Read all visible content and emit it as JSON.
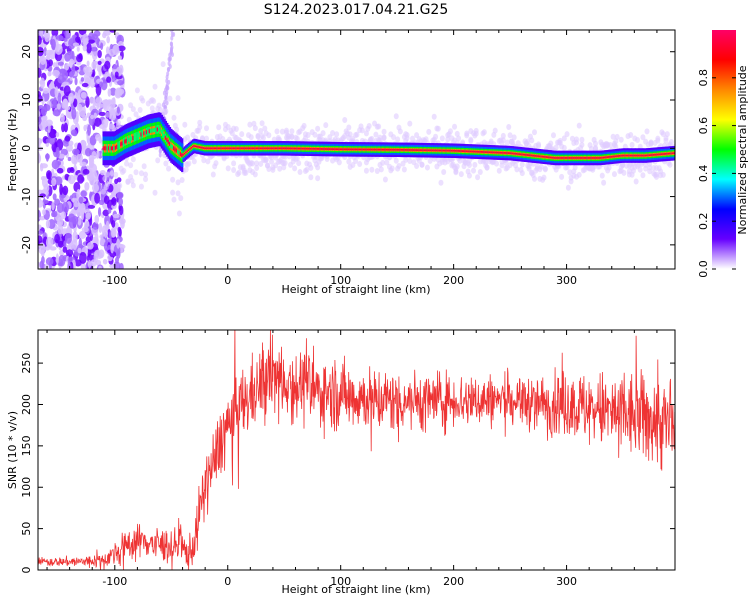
{
  "figure": {
    "title": "S124.2023.017.04.21.G25"
  },
  "chart_data": [
    {
      "type": "heatmap",
      "title": "",
      "xlabel": "Height of straight line (km)",
      "ylabel": "Frequency (Hz)",
      "xlim": [
        -168,
        396
      ],
      "ylim": [
        -25,
        24.5
      ],
      "xticks": [
        -100,
        0,
        100,
        200,
        300
      ],
      "yticks": [
        -20,
        -10,
        0,
        10,
        20
      ],
      "grid": false,
      "colorbar": {
        "label": "Normalized spectral amplitude",
        "range": [
          0,
          1
        ],
        "ticks": [
          0.0,
          0.2,
          0.4,
          0.6,
          0.8
        ],
        "colors": [
          "#ffffff",
          "#6600ff",
          "#0000ff",
          "#00ffff",
          "#00ff00",
          "#ffff00",
          "#ff8800",
          "#ff0000",
          "#ff0066"
        ]
      },
      "ridge": {
        "x": [
          -100,
          -90,
          -80,
          -70,
          -60,
          -50,
          -40,
          -30,
          -20,
          0,
          50,
          100,
          150,
          200,
          250,
          270,
          290,
          310,
          330,
          350,
          370,
          396
        ],
        "y": [
          0,
          1.5,
          2.5,
          3.5,
          4,
          0.5,
          -1.5,
          0.5,
          0,
          0,
          0,
          -0.2,
          -0.3,
          -0.5,
          -1,
          -1.5,
          -2,
          -2,
          -2,
          -1.5,
          -1.5,
          -1
        ]
      }
    },
    {
      "type": "line",
      "title": "",
      "xlabel": "Height of straight line (km)",
      "ylabel": "SNR (10 * v/v)",
      "xlim": [
        -168,
        396
      ],
      "ylim": [
        0,
        290
      ],
      "xticks": [
        -100,
        0,
        100,
        200,
        300
      ],
      "yticks": [
        0,
        50,
        100,
        150,
        200,
        250
      ],
      "grid": false,
      "series": [
        {
          "color": "#ee3333",
          "x": [
            -168,
            -150,
            -130,
            -110,
            -100,
            -90,
            -80,
            -70,
            -60,
            -50,
            -40,
            -35,
            -30,
            -25,
            -20,
            -15,
            -10,
            -5,
            0,
            10,
            20,
            30,
            40,
            50,
            60,
            70,
            80,
            90,
            100,
            120,
            140,
            160,
            180,
            200,
            220,
            240,
            260,
            280,
            300,
            320,
            340,
            360,
            380,
            396
          ],
          "values": [
            10,
            10,
            10,
            12,
            20,
            30,
            35,
            35,
            30,
            30,
            25,
            20,
            30,
            70,
            100,
            120,
            140,
            160,
            175,
            195,
            210,
            225,
            235,
            230,
            225,
            220,
            215,
            215,
            212,
            208,
            205,
            205,
            205,
            205,
            205,
            205,
            205,
            200,
            200,
            195,
            190,
            185,
            180,
            170
          ],
          "noise": [
            3,
            3,
            4,
            5,
            8,
            10,
            12,
            12,
            12,
            12,
            12,
            12,
            14,
            18,
            20,
            22,
            24,
            25,
            25,
            25,
            25,
            25,
            25,
            25,
            25,
            25,
            24,
            24,
            24,
            22,
            22,
            20,
            20,
            18,
            18,
            18,
            18,
            20,
            22,
            25,
            28,
            30,
            32,
            35
          ]
        }
      ]
    }
  ]
}
